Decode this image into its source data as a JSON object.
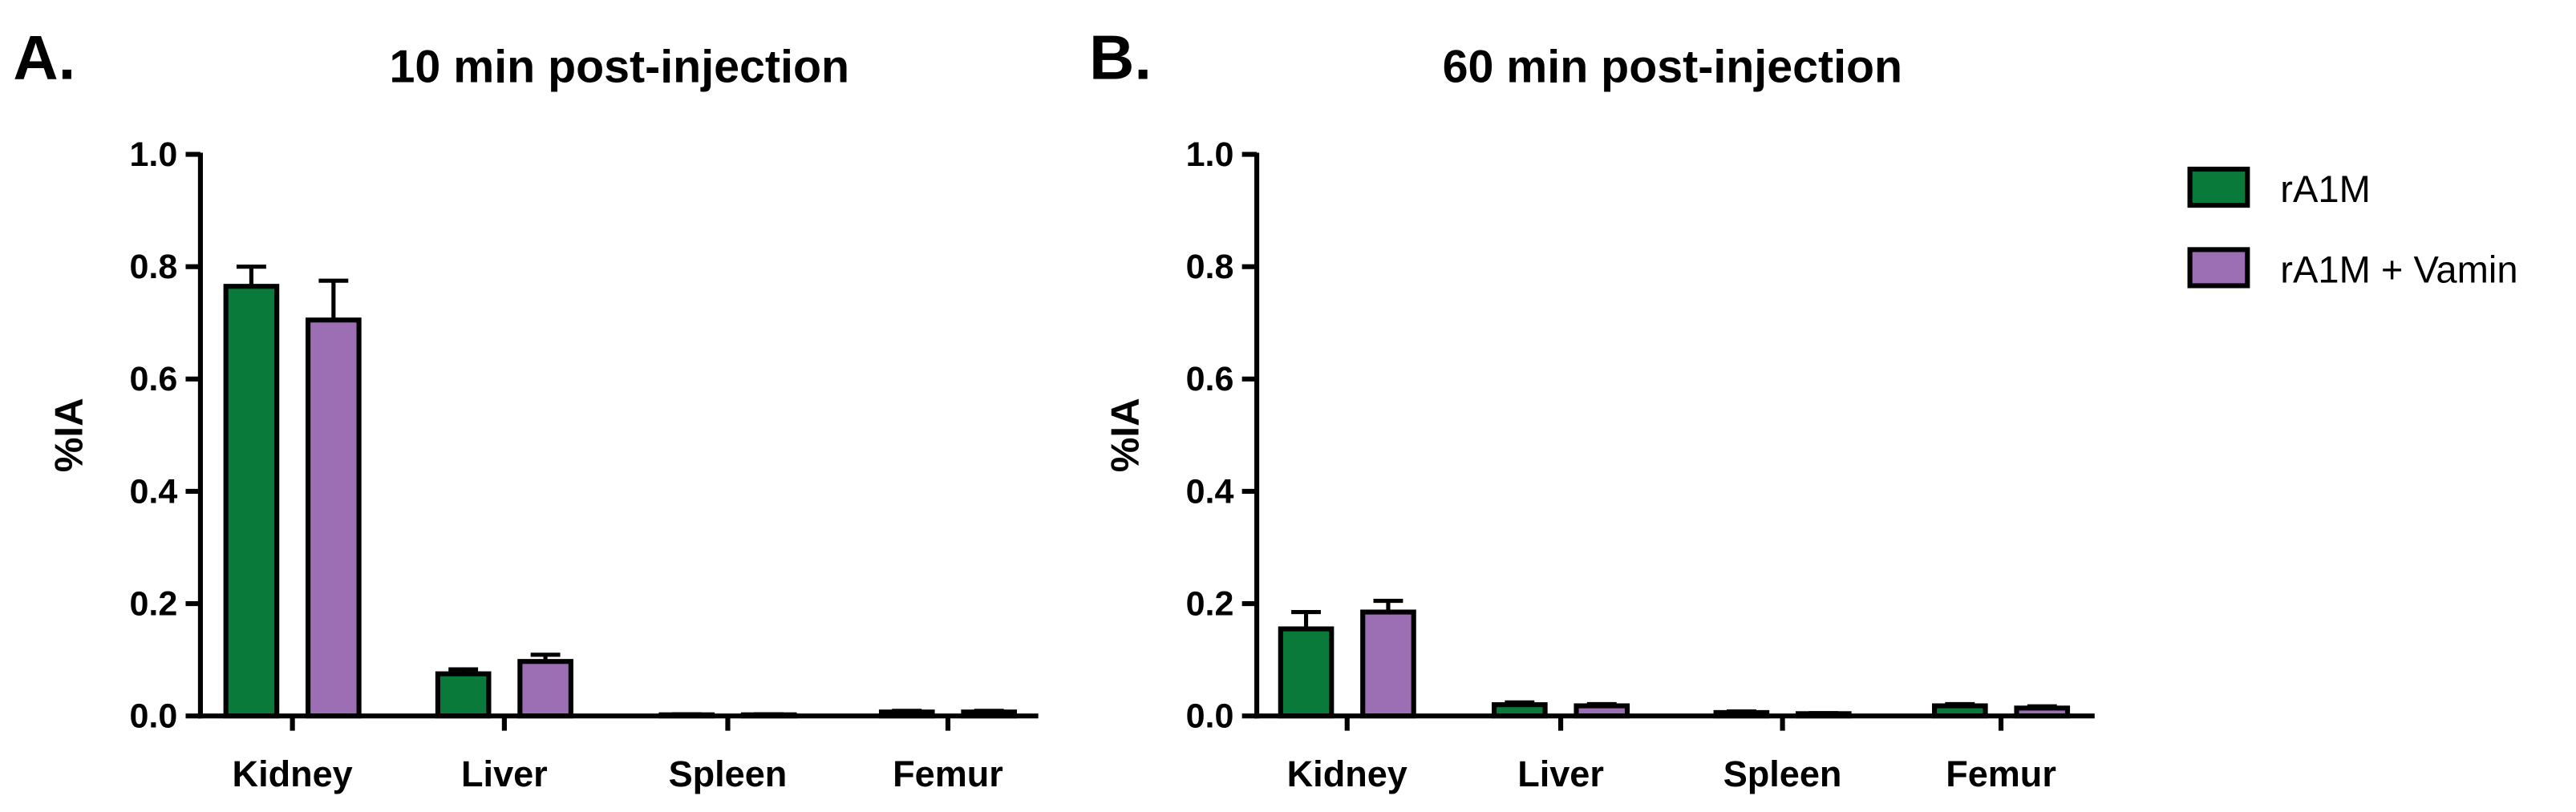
{
  "chart_data": [
    {
      "type": "bar",
      "panel_label": "A.",
      "title": "10 min post-injection",
      "y_label": "%IA",
      "categories": [
        "Kidney",
        "Liver",
        "Spleen",
        "Femur"
      ],
      "series": [
        {
          "name": "rA1M",
          "color": "#0a7a3a",
          "values": [
            0.765,
            0.075,
            0.002,
            0.007
          ],
          "errors": [
            0.035,
            0.008,
            0.001,
            0.002
          ]
        },
        {
          "name": "rA1M + Vamin",
          "color": "#9c6fb4",
          "values": [
            0.705,
            0.097,
            0.002,
            0.007
          ],
          "errors": [
            0.07,
            0.012,
            0.001,
            0.002
          ]
        }
      ],
      "ylim": [
        0,
        1
      ],
      "yticks": [
        {
          "value": 0,
          "label": "0.0"
        },
        {
          "value": 0.2,
          "label": "0.2"
        },
        {
          "value": 0.4,
          "label": "0.4"
        },
        {
          "value": 0.6,
          "label": "0.6"
        },
        {
          "value": 0.8,
          "label": "0.8"
        },
        {
          "value": 1,
          "label": "1.0"
        }
      ]
    },
    {
      "type": "bar",
      "panel_label": "B.",
      "title": "60 min post-injection",
      "y_label": "%IA",
      "categories": [
        "Kidney",
        "Liver",
        "Spleen",
        "Femur"
      ],
      "series": [
        {
          "name": "rA1M",
          "color": "#0a7a3a",
          "values": [
            0.155,
            0.02,
            0.006,
            0.018
          ],
          "errors": [
            0.03,
            0.004,
            0.002,
            0.003
          ]
        },
        {
          "name": "rA1M + Vamin",
          "color": "#9c6fb4",
          "values": [
            0.185,
            0.018,
            0.004,
            0.014
          ],
          "errors": [
            0.02,
            0.003,
            0.001,
            0.003
          ]
        }
      ],
      "ylim": [
        0,
        1
      ],
      "yticks": [
        {
          "value": 0,
          "label": "0.0"
        },
        {
          "value": 0.2,
          "label": "0.2"
        },
        {
          "value": 0.4,
          "label": "0.4"
        },
        {
          "value": 0.6,
          "label": "0.6"
        },
        {
          "value": 0.8,
          "label": "0.8"
        },
        {
          "value": 1,
          "label": "1.0"
        }
      ],
      "legend": "right"
    }
  ]
}
